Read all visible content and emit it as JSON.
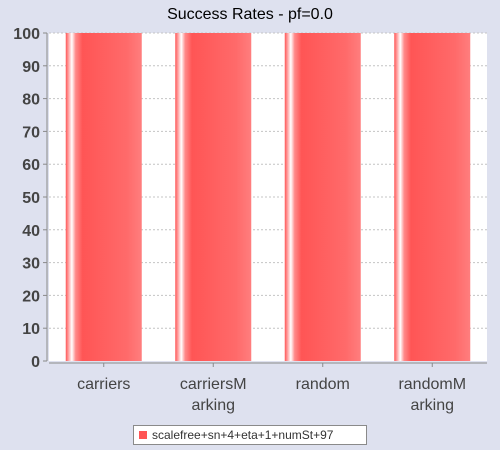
{
  "chart_data": {
    "type": "bar",
    "title": "Success Rates - pf=0.0",
    "xlabel": "",
    "ylabel": "",
    "categories": [
      [
        "carriers"
      ],
      [
        "carriersM",
        "arking"
      ],
      [
        "random"
      ],
      [
        "randomM",
        "arking"
      ]
    ],
    "series": [
      {
        "name": "scalefree+sn+4+eta+1+numSt+97",
        "values": [
          100,
          100,
          100,
          100
        ]
      }
    ],
    "ylim": [
      0,
      100
    ],
    "yticks": [
      0,
      10,
      20,
      30,
      40,
      50,
      60,
      70,
      80,
      90,
      100
    ],
    "grid": true,
    "legend_position": "bottom"
  },
  "colors": {
    "bar": "#ff5555",
    "bar_highlight": "#ffffff",
    "background": "#dee1ef",
    "plot_background": "#ffffff",
    "grid": "#c4c4c4"
  }
}
